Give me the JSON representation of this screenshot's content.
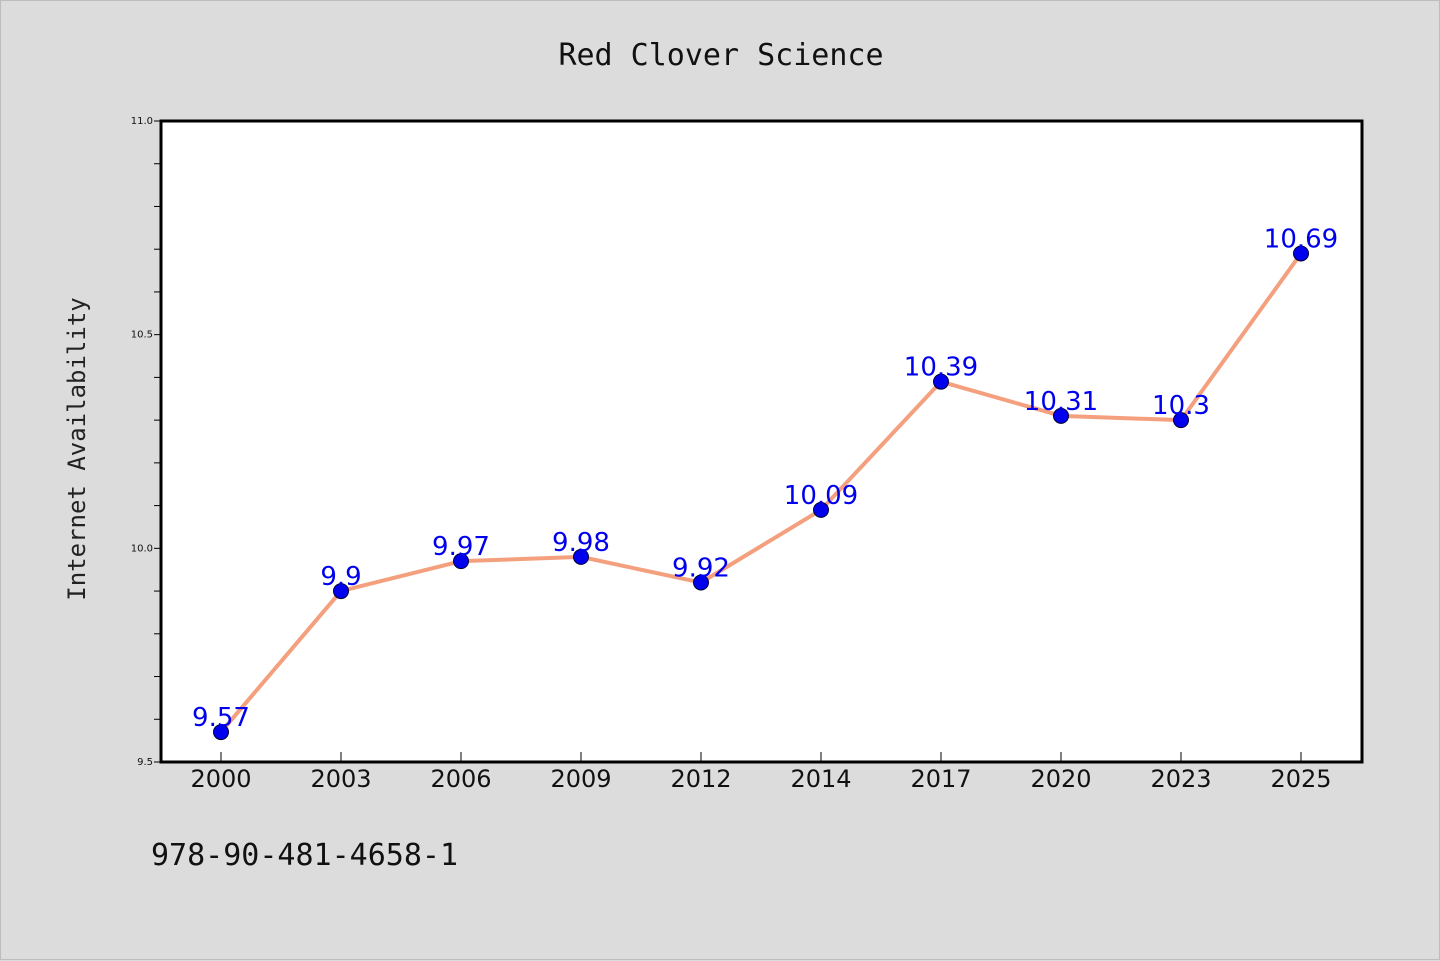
{
  "chart_data": {
    "type": "line",
    "title": "Red Clover Science",
    "xlabel": "",
    "ylabel": "Internet Availability",
    "categories": [
      "2000",
      "2003",
      "2006",
      "2009",
      "2012",
      "2014",
      "2017",
      "2020",
      "2023",
      "2025"
    ],
    "series": [
      {
        "values": [
          9.57,
          9.9,
          9.97,
          9.98,
          9.92,
          10.09,
          10.39,
          10.31,
          10.3,
          10.69
        ],
        "labels": [
          "9.57",
          "9.9",
          "9.97",
          "9.98",
          "9.92",
          "10.09",
          "10.39",
          "10.31",
          "10.3",
          "10.69"
        ]
      }
    ],
    "ylim": [
      9.5,
      11.0
    ],
    "yticks": [
      "9.5",
      "10.0",
      "10.5",
      "11.0"
    ],
    "grid": false,
    "legend": "none",
    "colors": {
      "line": "#f4a07e",
      "marker": "#0000ee",
      "label": "#0000ee",
      "background": "#dcdcdc",
      "plot_background": "#ffffff"
    }
  },
  "footer": {
    "isbn": "978-90-481-4658-1"
  }
}
